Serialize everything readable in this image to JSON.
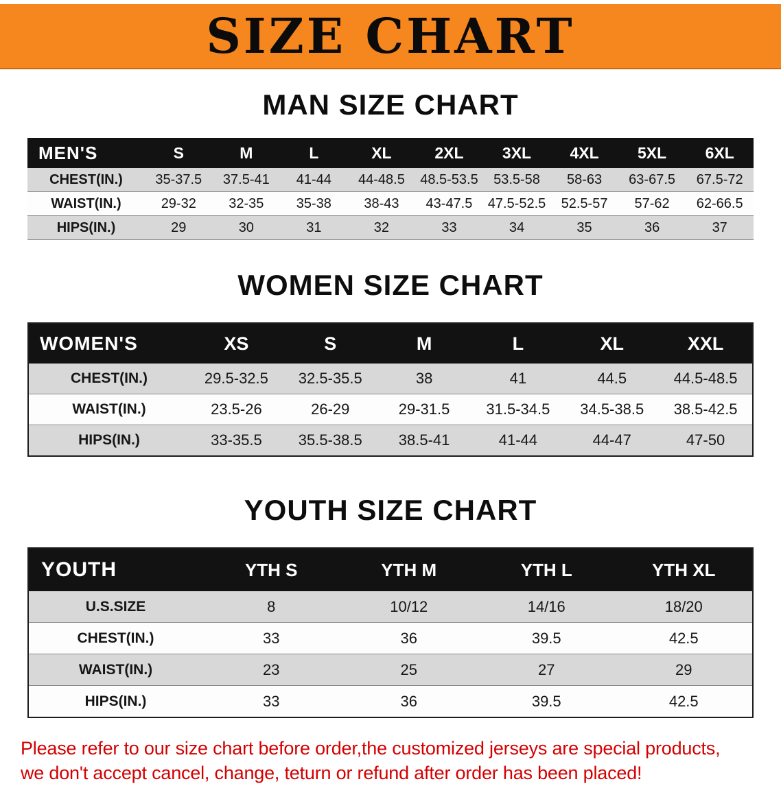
{
  "banner": {
    "title": "SIZE CHART"
  },
  "sections": [
    {
      "heading": "MAN SIZE CHART",
      "table": {
        "header": [
          "MEN'S",
          "S",
          "M",
          "L",
          "XL",
          "2XL",
          "3XL",
          "4XL",
          "5XL",
          "6XL"
        ],
        "rows": [
          [
            "CHEST(IN.)",
            "35-37.5",
            "37.5-41",
            "41-44",
            "44-48.5",
            "48.5-53.5",
            "53.5-58",
            "58-63",
            "63-67.5",
            "67.5-72"
          ],
          [
            "WAIST(IN.)",
            "29-32",
            "32-35",
            "35-38",
            "38-43",
            "43-47.5",
            "47.5-52.5",
            "52.5-57",
            "57-62",
            "62-66.5"
          ],
          [
            "HIPS(IN.)",
            "29",
            "30",
            "31",
            "32",
            "33",
            "34",
            "35",
            "36",
            "37"
          ]
        ]
      }
    },
    {
      "heading": "WOMEN SIZE CHART",
      "table": {
        "header": [
          "WOMEN'S",
          "XS",
          "S",
          "M",
          "L",
          "XL",
          "XXL"
        ],
        "rows": [
          [
            "CHEST(IN.)",
            "29.5-32.5",
            "32.5-35.5",
            "38",
            "41",
            "44.5",
            "44.5-48.5"
          ],
          [
            "WAIST(IN.)",
            "23.5-26",
            "26-29",
            "29-31.5",
            "31.5-34.5",
            "34.5-38.5",
            "38.5-42.5"
          ],
          [
            "HIPS(IN.)",
            "33-35.5",
            "35.5-38.5",
            "38.5-41",
            "41-44",
            "44-47",
            "47-50"
          ]
        ]
      }
    },
    {
      "heading": "YOUTH SIZE CHART",
      "table": {
        "header": [
          "YOUTH",
          "YTH S",
          "YTH M",
          "YTH L",
          "YTH XL"
        ],
        "rows": [
          [
            "U.S.SIZE",
            "8",
            "10/12",
            "14/16",
            "18/20"
          ],
          [
            "CHEST(IN.)",
            "33",
            "36",
            "39.5",
            "42.5"
          ],
          [
            "WAIST(IN.)",
            "23",
            "25",
            "27",
            "29"
          ],
          [
            "HIPS(IN.)",
            "33",
            "36",
            "39.5",
            "42.5"
          ]
        ]
      }
    }
  ],
  "disclaimer": {
    "line1": "Please refer to our size chart before order,the customized jerseys are special products,",
    "line2": "we don't accept cancel, change, teturn or refund after order has been placed!"
  },
  "colors": {
    "banner_orange": "#F6861E",
    "table_header_bg": "#121212",
    "stripe_row_bg": "#d8d8d8",
    "disclaimer_red": "#d40000"
  }
}
